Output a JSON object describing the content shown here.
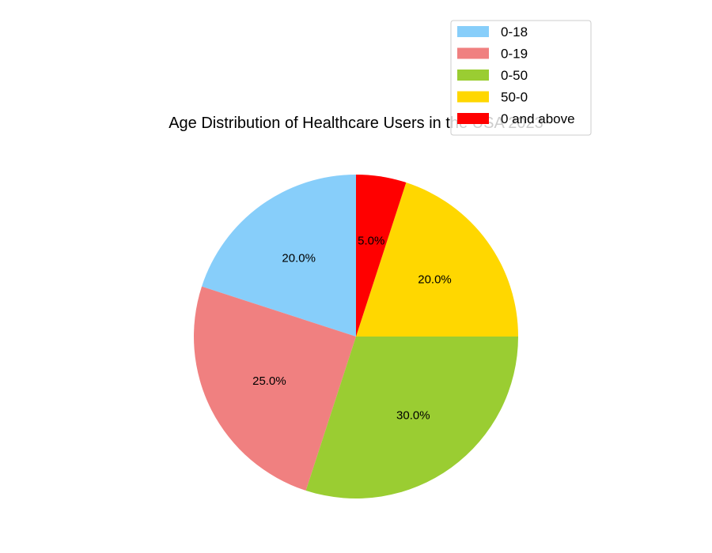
{
  "chart_data": {
    "type": "pie",
    "title": "Age Distribution of Healthcare Users in the USA 2023",
    "categories": [
      "0-18",
      "0-19",
      "0-50",
      "50-0",
      "0 and above"
    ],
    "values": [
      20,
      25,
      30,
      20,
      5
    ],
    "value_labels": [
      "20.0%",
      "25.0%",
      "30.0%",
      "20.0%",
      "5.0%"
    ],
    "colors": [
      "#87CEFA",
      "#F08080",
      "#9ACD32",
      "#FFD700",
      "#FF0000"
    ],
    "start_angle_deg": 90,
    "direction": "counterclockwise",
    "legend": {
      "placement": "top-right",
      "entries": [
        "0-18",
        "0-19",
        "0-50",
        "50-0",
        "0 and above"
      ]
    }
  }
}
